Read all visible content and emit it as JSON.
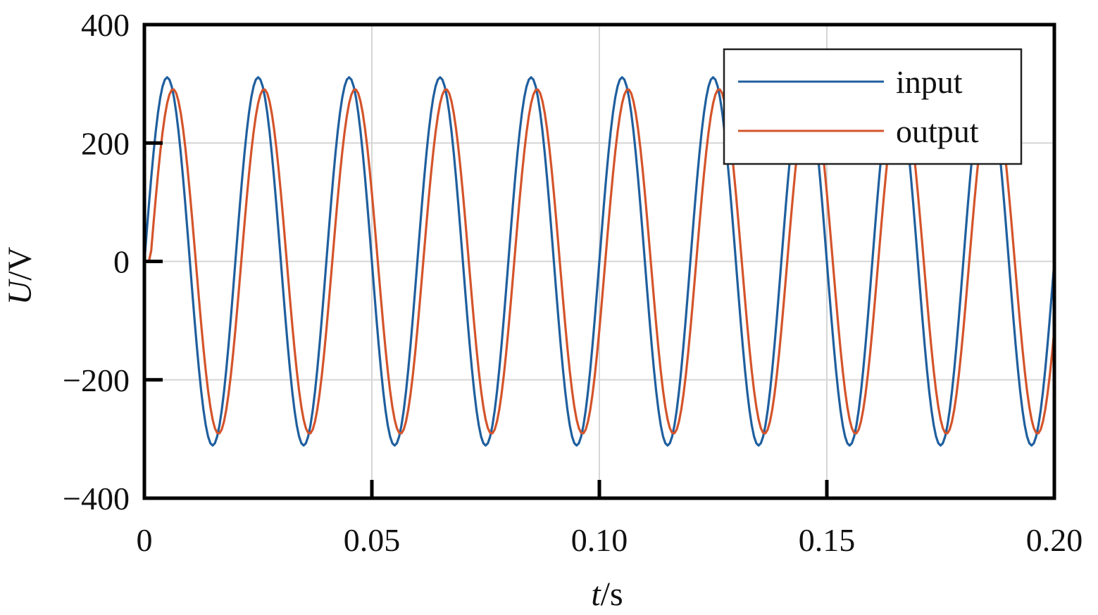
{
  "chart_data": {
    "type": "line",
    "title": "",
    "xlabel": {
      "var": "t",
      "unit": "/s"
    },
    "ylabel": {
      "var": "U",
      "unit": "/V"
    },
    "xlim": [
      0,
      0.2
    ],
    "ylim": [
      -400,
      400
    ],
    "xticks": [
      0,
      0.05,
      0.1,
      0.15,
      0.2
    ],
    "xtick_labels": [
      "0",
      "0.05",
      "0.10",
      "0.15",
      "0.20"
    ],
    "yticks": [
      -400,
      -200,
      0,
      200,
      400
    ],
    "ytick_labels": [
      "−400",
      "−200",
      "0",
      "200",
      "400"
    ],
    "grid": true,
    "legend_position": "top-right",
    "sample_step": 0.0005,
    "series": [
      {
        "name": "input",
        "color": "#1f5f9e",
        "frequency_hz": 50,
        "amplitude": 311,
        "delay_s": 0
      },
      {
        "name": "output",
        "color": "#d4542b",
        "frequency_hz": 50,
        "amplitude": 291,
        "delay_s": 0.0013
      }
    ]
  }
}
